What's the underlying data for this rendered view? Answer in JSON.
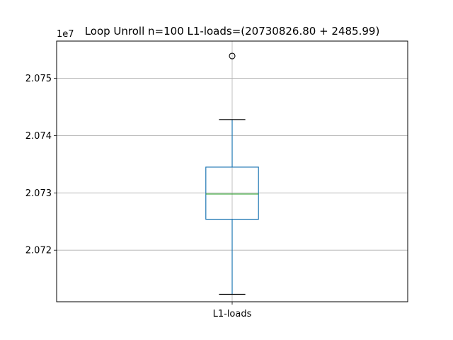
{
  "chart_data": {
    "type": "box",
    "title": "Loop Unroll n=100  L1-loads=(20730826.80 + 2485.99)",
    "xlabel": "",
    "ylabel": "",
    "y_offset_label": "1e7",
    "categories": [
      "L1-loads"
    ],
    "y_ticks": [
      {
        "value": 20720000,
        "label": "2.072"
      },
      {
        "value": 20730000,
        "label": "2.073"
      },
      {
        "value": 20740000,
        "label": "2.074"
      },
      {
        "value": 20750000,
        "label": "2.075"
      }
    ],
    "ylim": [
      20711000,
      20756500
    ],
    "grid": true,
    "legend": "none",
    "boxes": [
      {
        "name": "L1-loads",
        "whisker_low": 20712300,
        "q1": 20725400,
        "median": 20729800,
        "q3": 20734500,
        "whisker_high": 20742800,
        "outliers": [
          20753900
        ]
      }
    ],
    "colors": {
      "box": "#1f77b4",
      "median": "#2ca02c",
      "whisker_cap": "#000000",
      "grid": "#b0b0b0",
      "outlier": "#000000"
    }
  }
}
